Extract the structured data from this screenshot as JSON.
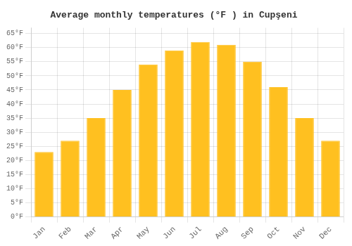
{
  "chart_data": {
    "type": "bar",
    "title": "Average monthly temperatures (°F ) in Cupşeni",
    "categories": [
      "Jan",
      "Feb",
      "Mar",
      "Apr",
      "May",
      "Jun",
      "Jul",
      "Aug",
      "Sep",
      "Oct",
      "Nov",
      "Dec"
    ],
    "values": [
      23,
      27,
      35,
      45,
      54,
      59,
      62,
      61,
      55,
      46,
      35,
      27
    ],
    "color": "#FFC020",
    "ylim": [
      0,
      67
    ],
    "yticks": [
      {
        "value": 0,
        "label": "0°F"
      },
      {
        "value": 5,
        "label": "5°F"
      },
      {
        "value": 10,
        "label": "10°F"
      },
      {
        "value": 15,
        "label": "15°F"
      },
      {
        "value": 20,
        "label": "20°F"
      },
      {
        "value": 25,
        "label": "25°F"
      },
      {
        "value": 30,
        "label": "30°F"
      },
      {
        "value": 35,
        "label": "35°F"
      },
      {
        "value": 40,
        "label": "40°F"
      },
      {
        "value": 45,
        "label": "45°F"
      },
      {
        "value": 50,
        "label": "50°F"
      },
      {
        "value": 55,
        "label": "55°F"
      },
      {
        "value": 60,
        "label": "60°F"
      },
      {
        "value": 65,
        "label": "65°F"
      }
    ],
    "grid": true
  }
}
